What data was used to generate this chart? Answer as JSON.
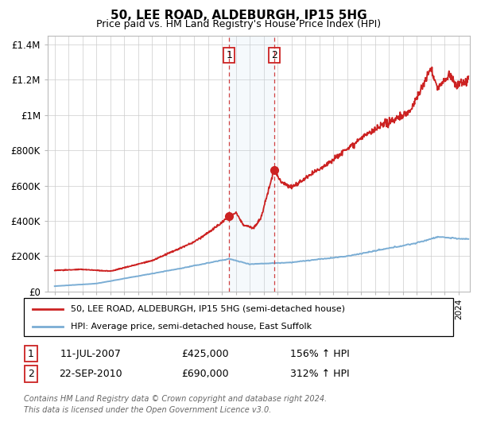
{
  "title": "50, LEE ROAD, ALDEBURGH, IP15 5HG",
  "subtitle": "Price paid vs. HM Land Registry's House Price Index (HPI)",
  "hpi_color": "#7aadd4",
  "price_color": "#cc2222",
  "transaction1_date_x": 2007.53,
  "transaction1_price": 425000,
  "transaction1_label": "1",
  "transaction1_date_str": "11-JUL-2007",
  "transaction1_price_str": "£425,000",
  "transaction1_hpi_pct": "156% ↑ HPI",
  "transaction2_date_x": 2010.75,
  "transaction2_price": 690000,
  "transaction2_label": "2",
  "transaction2_date_str": "22-SEP-2010",
  "transaction2_price_str": "£690,000",
  "transaction2_hpi_pct": "312% ↑ HPI",
  "ylim_min": 0,
  "ylim_max": 1450000,
  "xlim_min": 1994.5,
  "xlim_max": 2024.8,
  "yticks": [
    0,
    200000,
    400000,
    600000,
    800000,
    1000000,
    1200000,
    1400000
  ],
  "ytick_labels": [
    "£0",
    "£200K",
    "£400K",
    "£600K",
    "£800K",
    "£1M",
    "£1.2M",
    "£1.4M"
  ],
  "footer_line1": "Contains HM Land Registry data © Crown copyright and database right 2024.",
  "footer_line2": "This data is licensed under the Open Government Licence v3.0.",
  "legend_line1": "50, LEE ROAD, ALDEBURGH, IP15 5HG (semi-detached house)",
  "legend_line2": "HPI: Average price, semi-detached house, East Suffolk"
}
